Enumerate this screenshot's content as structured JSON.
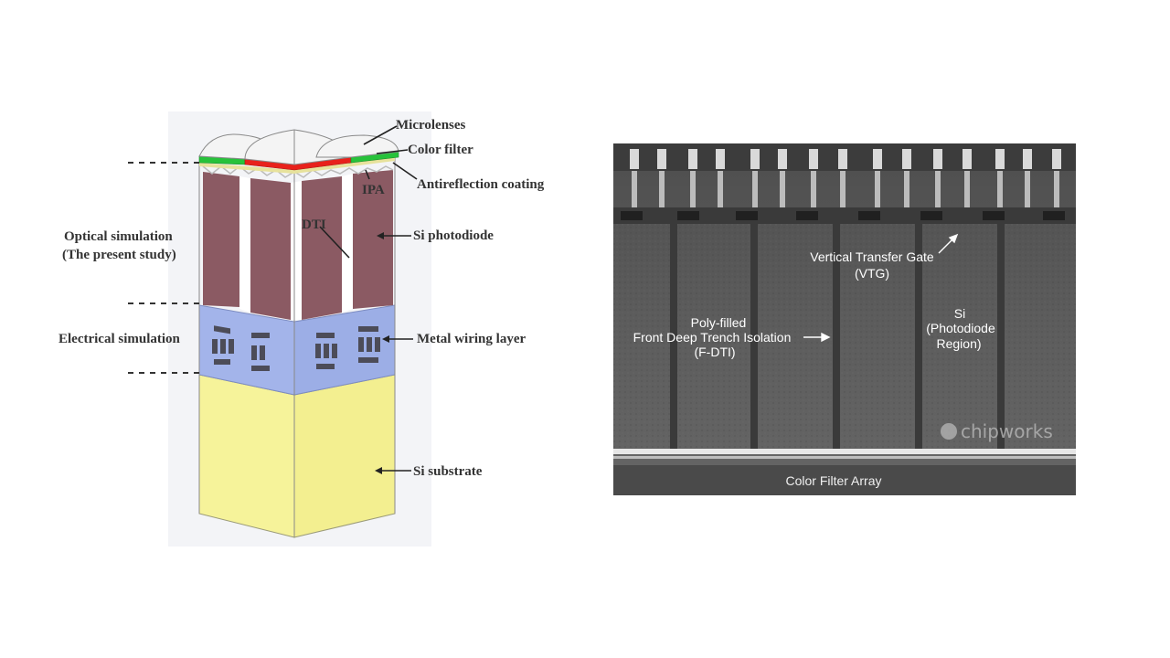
{
  "left_labels": {
    "microlenses": "Microlenses",
    "color_filter": "Color filter",
    "antireflection": "Antireflection coating",
    "ipa": "IPA",
    "dti": "DTI",
    "si_photodiode": "Si photodiode",
    "optical_sim_1": "Optical simulation",
    "optical_sim_2": "(The present study)",
    "electrical_sim": "Electrical simulation",
    "metal_wiring": "Metal wiring layer",
    "si_substrate": "Si substrate"
  },
  "sem_labels": {
    "vtg_1": "Vertical Transfer Gate",
    "vtg_2": "(VTG)",
    "fdti_1": "Poly-filled",
    "fdti_2": "Front Deep Trench Isolation",
    "fdti_3": "(F-DTI)",
    "si_1": "Si",
    "si_2": "(Photodiode",
    "si_3": "Region)",
    "cfa": "Color Filter Array",
    "watermark": "chipworks"
  },
  "colors": {
    "photodiode": "#8b5a63",
    "metal_layer": "#a3b4ea",
    "substrate": "#f6f39a",
    "red_filter": "#e8211b",
    "green_filter": "#27c23a",
    "sem_bg": "#575757"
  }
}
